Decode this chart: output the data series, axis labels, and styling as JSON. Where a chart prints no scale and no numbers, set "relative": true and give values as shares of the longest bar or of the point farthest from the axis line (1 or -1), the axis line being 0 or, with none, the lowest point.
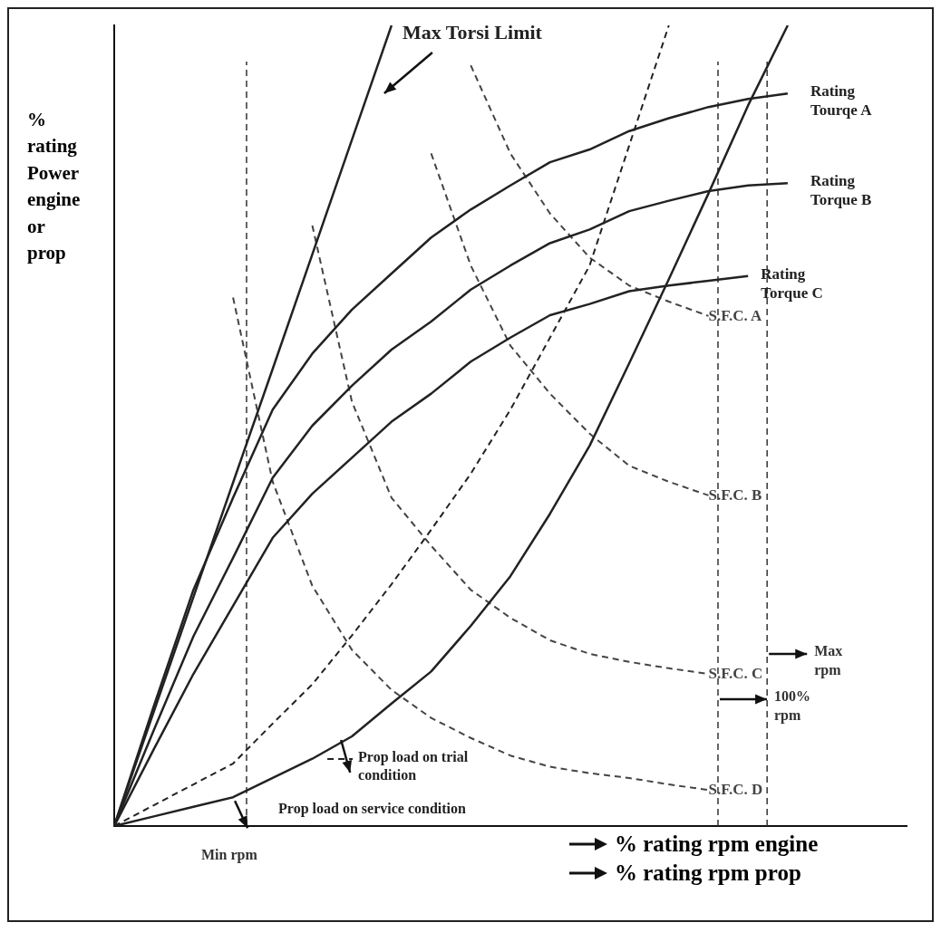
{
  "chart_data": {
    "type": "line",
    "relative": true,
    "xlabel": "% rating rpm engine\n% rating rpm prop",
    "ylabel": "% rating Power engine or prop",
    "grid": false,
    "marker": "none",
    "line_style": "solid",
    "categories": [
      null,
      null,
      null,
      null,
      null,
      null,
      null,
      null,
      null,
      null,
      null,
      null,
      null,
      null,
      null,
      null,
      null,
      null,
      null,
      null,
      null
    ],
    "ref_lines": [
      {
        "axis": "x",
        "label": "Min rpm",
        "color": "#333333",
        "line_style": "dashed"
      },
      {
        "axis": "x",
        "label": "100% rpm",
        "color": "#333333",
        "line_style": "dashed"
      },
      {
        "axis": "x",
        "label": "Max rpm",
        "color": "#333333",
        "line_style": "dashed"
      }
    ],
    "series": [
      {
        "name": "Max Torsi Limit",
        "color": "#222222",
        "values": [
          0,
          0.143,
          0.286,
          0.429,
          0.571,
          0.714,
          0.857,
          1.0,
          null,
          null,
          null,
          null,
          null,
          null,
          null,
          null,
          null,
          null,
          null,
          null,
          null
        ]
      },
      {
        "name": "Rating Tourqe A",
        "color": "#222222",
        "values": [
          0,
          0.15,
          0.295,
          0.41,
          0.52,
          0.59,
          0.645,
          0.69,
          0.735,
          0.77,
          0.8,
          0.829,
          0.845,
          0.868,
          0.884,
          0.898,
          0.908,
          0.915,
          null,
          null,
          null
        ]
      },
      {
        "name": "Rating Torque B",
        "color": "#222222",
        "values": [
          0,
          0.12,
          0.237,
          0.335,
          0.435,
          0.5,
          0.55,
          0.595,
          0.63,
          0.67,
          0.7,
          0.728,
          0.745,
          0.768,
          0.781,
          0.793,
          0.8,
          0.803,
          null,
          null,
          null
        ]
      },
      {
        "name": "Rating Torque C",
        "color": "#222222",
        "values": [
          0,
          0.096,
          0.19,
          0.275,
          0.36,
          0.415,
          0.46,
          0.505,
          0.54,
          0.58,
          0.61,
          0.638,
          0.652,
          0.668,
          0.675,
          0.681,
          0.687,
          null,
          null,
          null,
          null
        ]
      },
      {
        "name": "Prop load on trial condition",
        "color": "#222222",
        "line_style": "dashed",
        "values": [
          0,
          0.026,
          0.052,
          0.078,
          0.128,
          0.177,
          0.238,
          0.302,
          0.37,
          0.44,
          0.52,
          0.61,
          0.7,
          0.85,
          1.0,
          null,
          null,
          null,
          null,
          null,
          null
        ]
      },
      {
        "name": "Prop load on service condition",
        "color": "#222222",
        "values": [
          0,
          0.012,
          0.024,
          0.036,
          0.06,
          0.084,
          0.112,
          0.153,
          0.193,
          0.25,
          0.312,
          0.39,
          0.475,
          0.578,
          0.683,
          0.79,
          0.9,
          1.0,
          null,
          null,
          null
        ]
      },
      {
        "name": "S.F.C. A",
        "color": "#444444",
        "line_style": "dashed",
        "values": [
          null,
          null,
          null,
          null,
          null,
          null,
          null,
          null,
          null,
          0.95,
          0.84,
          0.765,
          0.71,
          0.675,
          0.655,
          0.637,
          null,
          null,
          null,
          null,
          null
        ]
      },
      {
        "name": "S.F.C. B",
        "color": "#444444",
        "line_style": "dashed",
        "values": [
          null,
          null,
          null,
          null,
          null,
          null,
          null,
          null,
          0.84,
          0.7,
          0.6,
          0.54,
          0.49,
          0.45,
          0.43,
          0.413,
          null,
          null,
          null,
          null,
          null
        ]
      },
      {
        "name": "S.F.C. C",
        "color": "#444444",
        "line_style": "dashed",
        "values": [
          null,
          null,
          null,
          null,
          null,
          0.75,
          0.53,
          0.41,
          0.35,
          0.295,
          0.26,
          0.232,
          0.215,
          0.205,
          0.197,
          0.19,
          null,
          null,
          null,
          null,
          null
        ]
      },
      {
        "name": "S.F.C. D",
        "color": "#444444",
        "line_style": "dashed",
        "values": [
          null,
          null,
          null,
          0.66,
          0.43,
          0.3,
          0.22,
          0.17,
          0.135,
          0.11,
          0.088,
          0.074,
          0.066,
          0.06,
          0.052,
          0.045,
          null,
          null,
          null,
          null,
          null
        ]
      }
    ]
  }
}
